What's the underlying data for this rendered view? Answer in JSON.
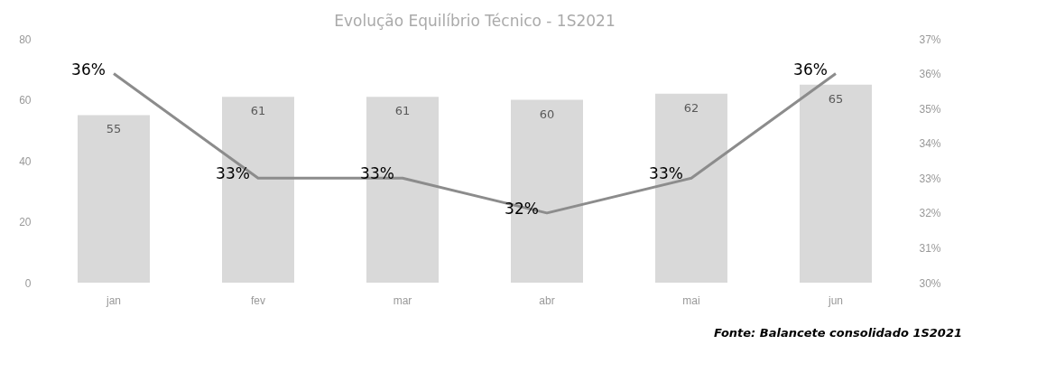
{
  "chart_data": {
    "type": "bar",
    "title": "Evolução Equilíbrio Técnico - 1S2021",
    "categories": [
      "jan",
      "fev",
      "mar",
      "abr",
      "mai",
      "jun"
    ],
    "series": [
      {
        "type": "bar",
        "color": "#d9d9d9",
        "values": [
          55,
          61,
          61,
          60,
          62,
          65
        ],
        "value_labels": [
          "55",
          "61",
          "61",
          "60",
          "62",
          "65"
        ]
      },
      {
        "type": "line",
        "axis": "y2",
        "color": "#8c8c8c",
        "values": [
          36,
          33,
          33,
          32,
          33,
          36
        ],
        "value_labels": [
          "36%",
          "33%",
          "33%",
          "32%",
          "33%",
          "36%"
        ]
      }
    ],
    "ylim": [
      0,
      80
    ],
    "yticks": [
      0,
      20,
      40,
      60,
      80
    ],
    "y2lim": [
      30,
      37
    ],
    "y2ticks": [
      {
        "value": 30,
        "label": "30%"
      },
      {
        "value": 31,
        "label": "31%"
      },
      {
        "value": 32,
        "label": "32%"
      },
      {
        "value": 33,
        "label": "33%"
      },
      {
        "value": 34,
        "label": "34%"
      },
      {
        "value": 35,
        "label": "35%"
      },
      {
        "value": 36,
        "label": "36%"
      },
      {
        "value": 37,
        "label": "37%"
      }
    ],
    "grid": false,
    "marker": "none",
    "annotations": [
      "Fonte: Balancete consolidado 1S2021"
    ]
  }
}
